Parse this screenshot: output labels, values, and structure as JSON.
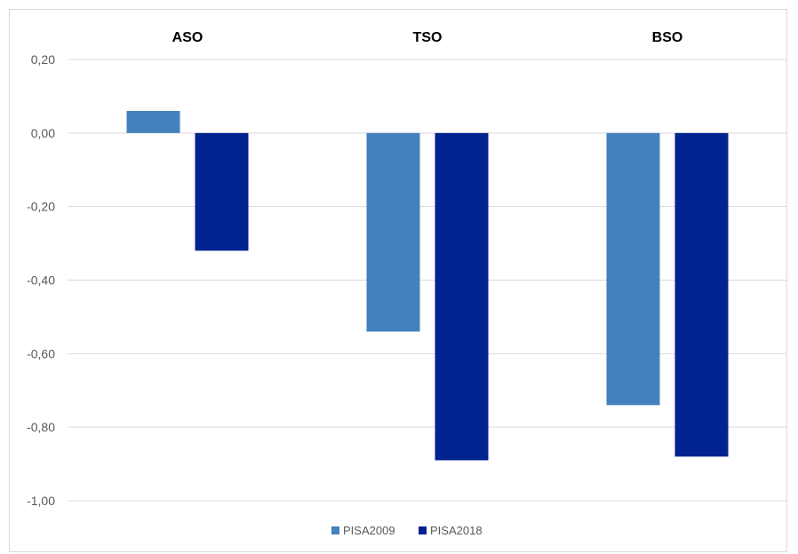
{
  "chart_data": {
    "type": "bar",
    "categories": [
      "ASO",
      "TSO",
      "BSO"
    ],
    "series": [
      {
        "name": "PISA2009",
        "values": [
          0.06,
          -0.54,
          -0.74
        ],
        "color": "#4580BE"
      },
      {
        "name": "PISA2018",
        "values": [
          -0.32,
          -0.89,
          -0.88
        ],
        "color": "#00238F"
      }
    ],
    "y_ticks": [
      "0,20",
      "0,00",
      "-0,20",
      "-0,40",
      "-0,60",
      "-0,80",
      "-1,00"
    ],
    "y_tick_values": [
      0.2,
      0.0,
      -0.2,
      -0.4,
      -0.6,
      -0.8,
      -1.0
    ],
    "ylim": [
      -1.0,
      0.2
    ],
    "grid": true,
    "legend_position": "bottom",
    "category_labels_position": "top",
    "title": "",
    "xlabel": "",
    "ylabel": ""
  }
}
